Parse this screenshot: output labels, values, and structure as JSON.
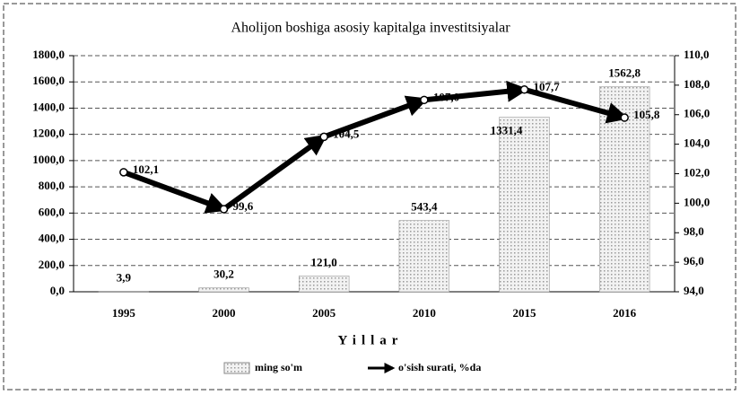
{
  "chart_data": {
    "type": "bar",
    "title": "Aholijon boshiga asosiy kapitalga investitsiyalar",
    "xlabel": "Yillar",
    "categories": [
      "1995",
      "2000",
      "2005",
      "2010",
      "2015",
      "2016"
    ],
    "series": [
      {
        "name": "ming so'm",
        "color": "#9a9a9a",
        "values": [
          3.9,
          30.2,
          121.0,
          543.4,
          1331.4,
          1562.8
        ],
        "value_labels": [
          "3,9",
          "30,2",
          "121,0",
          "543,4",
          "1331,4",
          "1562,8"
        ]
      },
      {
        "name": "o'sish surati, %da",
        "color": "#000000",
        "axis": "y2",
        "values": [
          102.1,
          99.6,
          104.5,
          107.0,
          107.7,
          105.8
        ],
        "value_labels": [
          "102,1",
          "99,6",
          "104,5",
          "107,0",
          "107,7",
          "105,8"
        ]
      }
    ],
    "ylim": [
      0,
      1800
    ],
    "yticks": [
      {
        "value": 0,
        "label": "0,0"
      },
      {
        "value": 200,
        "label": "200,0"
      },
      {
        "value": 400,
        "label": "400,0"
      },
      {
        "value": 600,
        "label": "600,0"
      },
      {
        "value": 800,
        "label": "800,0"
      },
      {
        "value": 1000,
        "label": "1000,0"
      },
      {
        "value": 1200,
        "label": "1200,0"
      },
      {
        "value": 1400,
        "label": "1400,0"
      },
      {
        "value": 1600,
        "label": "1600,0"
      },
      {
        "value": 1800,
        "label": "1800,0"
      }
    ],
    "y2lim": [
      94,
      110
    ],
    "y2ticks": [
      {
        "value": 94,
        "label": "94,0"
      },
      {
        "value": 96,
        "label": "96,0"
      },
      {
        "value": 98,
        "label": "98,0"
      },
      {
        "value": 100,
        "label": "100,0"
      },
      {
        "value": 102,
        "label": "102,0"
      },
      {
        "value": 104,
        "label": "104,0"
      },
      {
        "value": 106,
        "label": "106,0"
      },
      {
        "value": 108,
        "label": "108,0"
      },
      {
        "value": 110,
        "label": "110,0"
      }
    ],
    "grid": true
  }
}
